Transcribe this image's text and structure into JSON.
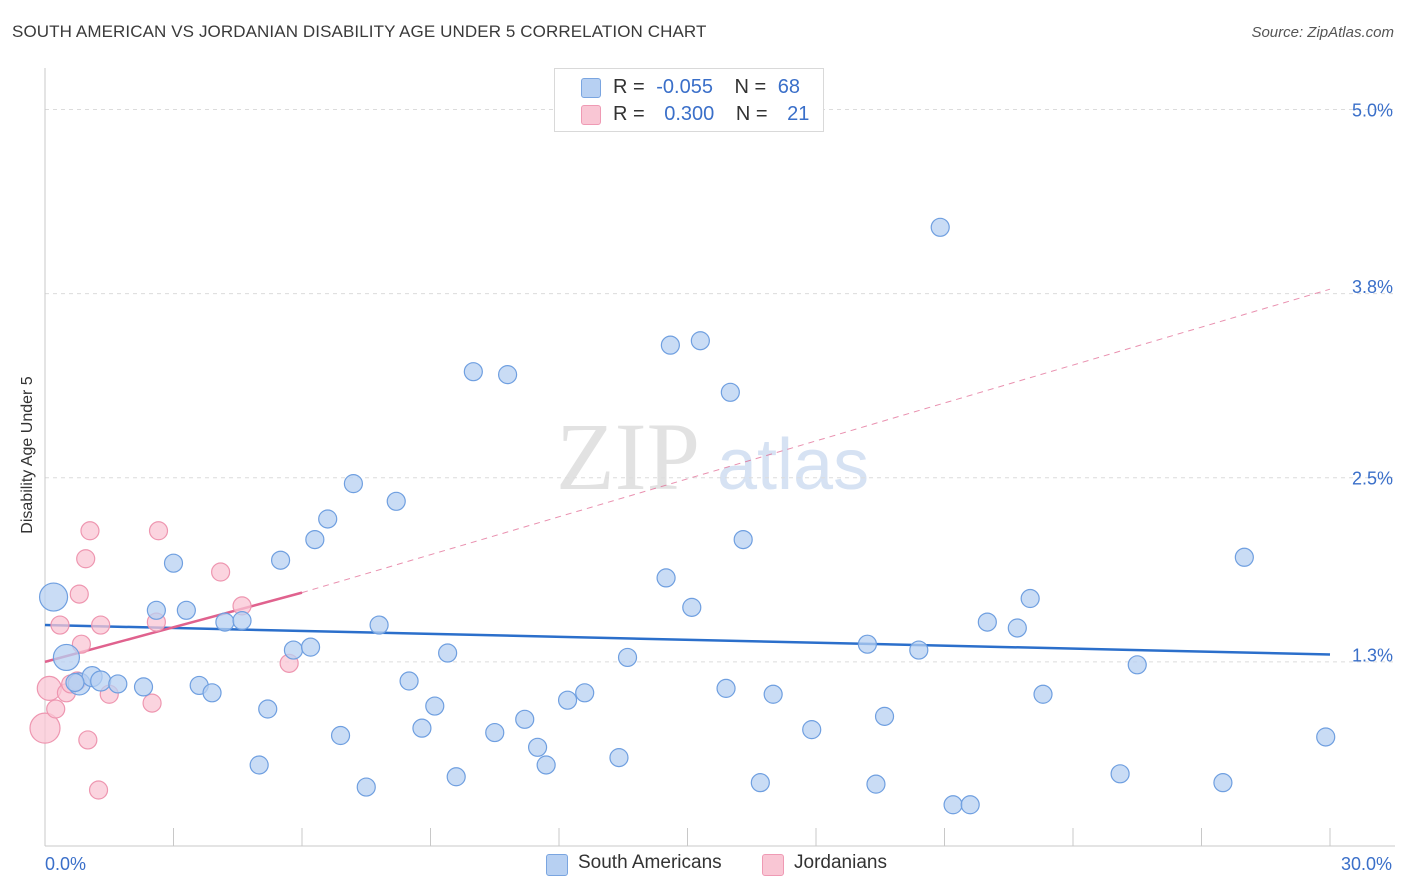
{
  "title": "SOUTH AMERICAN VS JORDANIAN DISABILITY AGE UNDER 5 CORRELATION CHART",
  "source": "Source: ZipAtlas.com",
  "watermark": {
    "zip": "ZIP",
    "atlas": "atlas"
  },
  "legend": {
    "r_label": "R =",
    "n_label": "N =",
    "items": [
      {
        "name": "South Americans",
        "r": "-0.055",
        "n": "68",
        "fill": "#b7d0f2",
        "stroke": "#7aa5e0"
      },
      {
        "name": "Jordanians",
        "r": "0.300",
        "n": "21",
        "fill": "#f9c6d4",
        "stroke": "#ef9ab4"
      }
    ]
  },
  "chart_data": {
    "type": "scatter",
    "title": "SOUTH AMERICAN VS JORDANIAN DISABILITY AGE UNDER 5 CORRELATION CHART",
    "xlabel": "",
    "ylabel": "Disability Age Under 5",
    "xlim": [
      0,
      30
    ],
    "ylim": [
      0,
      5.2
    ],
    "x_tick_labels": [
      {
        "value": 0,
        "label": "0.0%"
      },
      {
        "value": 30,
        "label": "30.0%"
      }
    ],
    "y_tick_labels": [
      {
        "value": 1.3,
        "label": "1.3%"
      },
      {
        "value": 2.5,
        "label": "2.5%"
      },
      {
        "value": 3.8,
        "label": "3.8%"
      },
      {
        "value": 5.0,
        "label": "5.0%"
      }
    ],
    "y_gridlines": [
      1.25,
      2.5,
      3.75,
      5.0
    ],
    "series": [
      {
        "name": "South Americans",
        "color": "#6f9fe0",
        "fill": "#b7d0f2",
        "trend": {
          "x0": 0,
          "y0": 1.5,
          "x1": 30,
          "y1": 1.3,
          "color": "#2b6fcb"
        },
        "points": [
          [
            0.2,
            1.69,
            14
          ],
          [
            0.5,
            1.28,
            13
          ],
          [
            0.8,
            1.1,
            11
          ],
          [
            1.1,
            1.15,
            10
          ],
          [
            1.3,
            1.12,
            10
          ],
          [
            1.7,
            1.1,
            9
          ],
          [
            2.3,
            1.08,
            9
          ],
          [
            2.6,
            1.6,
            9
          ],
          [
            3.0,
            1.92,
            9
          ],
          [
            3.3,
            1.6,
            9
          ],
          [
            3.6,
            1.09,
            9
          ],
          [
            3.9,
            1.04,
            9
          ],
          [
            4.2,
            1.52,
            9
          ],
          [
            4.6,
            1.53,
            9
          ],
          [
            5.0,
            0.55,
            9
          ],
          [
            5.2,
            0.93,
            9
          ],
          [
            5.5,
            1.94,
            9
          ],
          [
            5.8,
            1.33,
            9
          ],
          [
            6.2,
            1.35,
            9
          ],
          [
            6.3,
            2.08,
            9
          ],
          [
            6.6,
            2.22,
            9
          ],
          [
            6.9,
            0.75,
            9
          ],
          [
            7.2,
            2.46,
            9
          ],
          [
            7.5,
            0.4,
            9
          ],
          [
            7.8,
            1.5,
            9
          ],
          [
            8.2,
            2.34,
            9
          ],
          [
            8.5,
            1.12,
            9
          ],
          [
            8.8,
            0.8,
            9
          ],
          [
            9.1,
            0.95,
            9
          ],
          [
            9.4,
            1.31,
            9
          ],
          [
            9.6,
            0.47,
            9
          ],
          [
            10.0,
            3.22,
            9
          ],
          [
            10.5,
            0.77,
            9
          ],
          [
            10.8,
            3.2,
            9
          ],
          [
            11.2,
            0.86,
            9
          ],
          [
            11.5,
            0.67,
            9
          ],
          [
            11.7,
            0.55,
            9
          ],
          [
            12.2,
            0.99,
            9
          ],
          [
            12.6,
            1.04,
            9
          ],
          [
            13.4,
            0.6,
            9
          ],
          [
            13.6,
            1.28,
            9
          ],
          [
            14.6,
            3.4,
            9
          ],
          [
            14.5,
            1.82,
            9
          ],
          [
            15.3,
            3.43,
            9
          ],
          [
            15.1,
            1.62,
            9
          ],
          [
            15.9,
            1.07,
            9
          ],
          [
            16.0,
            3.08,
            9
          ],
          [
            16.3,
            2.08,
            9
          ],
          [
            16.7,
            0.43,
            9
          ],
          [
            17.0,
            1.03,
            9
          ],
          [
            17.9,
            0.79,
            9
          ],
          [
            19.2,
            1.37,
            9
          ],
          [
            19.4,
            0.42,
            9
          ],
          [
            19.6,
            0.88,
            9
          ],
          [
            20.4,
            1.33,
            9
          ],
          [
            20.9,
            4.2,
            9
          ],
          [
            21.2,
            0.28,
            9
          ],
          [
            21.6,
            0.28,
            9
          ],
          [
            22.0,
            1.52,
            9
          ],
          [
            22.7,
            1.48,
            9
          ],
          [
            23.0,
            1.68,
            9
          ],
          [
            23.3,
            1.03,
            9
          ],
          [
            25.1,
            0.49,
            9
          ],
          [
            25.5,
            1.23,
            9
          ],
          [
            27.5,
            0.43,
            9
          ],
          [
            28.0,
            1.96,
            9
          ],
          [
            29.9,
            0.74,
            9
          ],
          [
            0.7,
            1.11,
            9
          ]
        ]
      },
      {
        "name": "Jordanians",
        "color": "#ee96b0",
        "fill": "#f9c6d4",
        "trend": {
          "x0": 0,
          "y0": 1.25,
          "x1": 6,
          "y1": 1.72,
          "color": "#e0628e",
          "dash_x1": 30,
          "dash_y1": 3.78
        },
        "points": [
          [
            0.0,
            0.8,
            15
          ],
          [
            0.1,
            1.07,
            12
          ],
          [
            0.25,
            0.93,
            9
          ],
          [
            0.35,
            1.5,
            9
          ],
          [
            0.5,
            1.04,
            9
          ],
          [
            0.6,
            1.1,
            9
          ],
          [
            0.75,
            1.12,
            9
          ],
          [
            0.8,
            1.71,
            9
          ],
          [
            0.85,
            1.37,
            9
          ],
          [
            0.95,
            1.95,
            9
          ],
          [
            1.0,
            0.72,
            9
          ],
          [
            1.05,
            2.14,
            9
          ],
          [
            1.25,
            0.38,
            9
          ],
          [
            1.3,
            1.5,
            9
          ],
          [
            1.5,
            1.03,
            9
          ],
          [
            2.5,
            0.97,
            9
          ],
          [
            2.6,
            1.52,
            9
          ],
          [
            2.65,
            2.14,
            9
          ],
          [
            4.1,
            1.86,
            9
          ],
          [
            4.6,
            1.63,
            9
          ],
          [
            5.7,
            1.24,
            9
          ]
        ]
      }
    ]
  }
}
